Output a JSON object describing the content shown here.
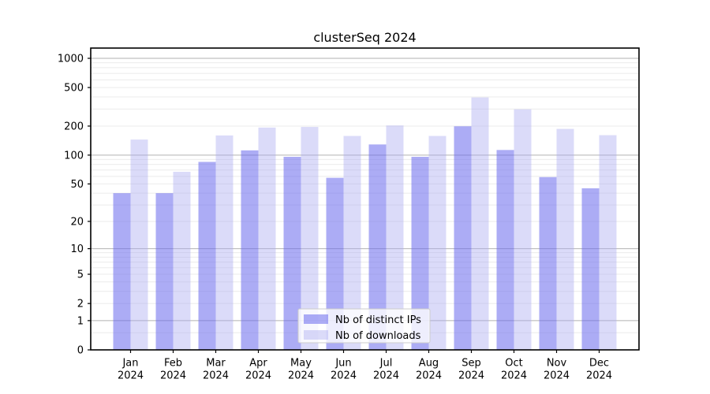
{
  "title": "clusterSeq 2024",
  "colors": {
    "distinct_ips_base": "#6b6bee",
    "distinct_ips_apparent": "#acacf4",
    "downloads_base": "#a9a9f0",
    "downloads_apparent": "#dbdbf7",
    "grid_major": "#b2b2b2",
    "grid_minor": "#ebebeb",
    "axis": "#000000",
    "legend_border": "#cccccc",
    "legend_bg": "#ffffff"
  },
  "legend": {
    "items": [
      {
        "label": "Nb of distinct IPs"
      },
      {
        "label": "Nb of downloads"
      }
    ]
  },
  "chart_data": {
    "type": "bar",
    "title": "clusterSeq 2024",
    "xlabel": "",
    "ylabel": "",
    "categories": [
      "Jan 2024",
      "Feb 2024",
      "Mar 2024",
      "Apr 2024",
      "May 2024",
      "Jun 2024",
      "Jul 2024",
      "Aug 2024",
      "Sep 2024",
      "Oct 2024",
      "Nov 2024",
      "Dec 2024"
    ],
    "series": [
      {
        "name": "Nb of distinct IPs",
        "color": "#6b6bee",
        "fill_opacity": 0.56,
        "apparent_color": "#acacf4",
        "values": [
          40,
          40,
          85,
          112,
          96,
          58,
          129,
          96,
          199,
          113,
          59,
          45
        ]
      },
      {
        "name": "Nb of downloads",
        "color": "#a9a9f0",
        "fill_opacity": 0.42,
        "apparent_color": "#dbdbf7",
        "values": [
          145,
          67,
          160,
          193,
          196,
          158,
          203,
          158,
          395,
          298,
          187,
          161
        ]
      }
    ],
    "yscale": "log1p",
    "ylim": [
      0,
      1280
    ],
    "yticks": [
      1000,
      500,
      200,
      100,
      50,
      20,
      10,
      5,
      2,
      1,
      0
    ],
    "grid": "on",
    "legend_position": "lower-center"
  }
}
